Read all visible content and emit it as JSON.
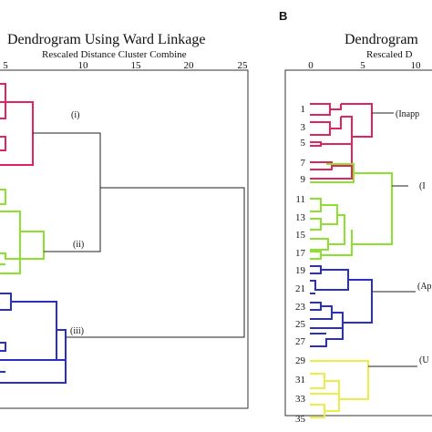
{
  "panel_b": {
    "letter": "B"
  },
  "panel_a": {
    "title": "Dendrogram Using Ward Linkage",
    "axis_title": "Rescaled Distance Cluster Combine",
    "ticks": [
      "5",
      "10",
      "15",
      "20",
      "25"
    ],
    "cluster_labels": [
      "(i)",
      "(ii)",
      "(iii)"
    ]
  },
  "panel_b_view": {
    "title": "Dendrogram",
    "axis_title": "Rescaled D",
    "ticks": [
      "0",
      "5",
      "10"
    ],
    "leaf_labels": [
      "1",
      "3",
      "5",
      "7",
      "9",
      "11",
      "13",
      "15",
      "17",
      "19",
      "21",
      "23",
      "25",
      "27",
      "29",
      "31",
      "33",
      "35"
    ],
    "cluster_labels": [
      "(Inapp",
      "(I",
      "(Ap",
      "(U"
    ]
  },
  "colors": {
    "cluster_red": "#e0245e",
    "cluster_green": "#8be12e",
    "cluster_blue": "#2b2fc4",
    "cluster_yellow": "#eded4a",
    "merge_black": "#222222"
  }
}
